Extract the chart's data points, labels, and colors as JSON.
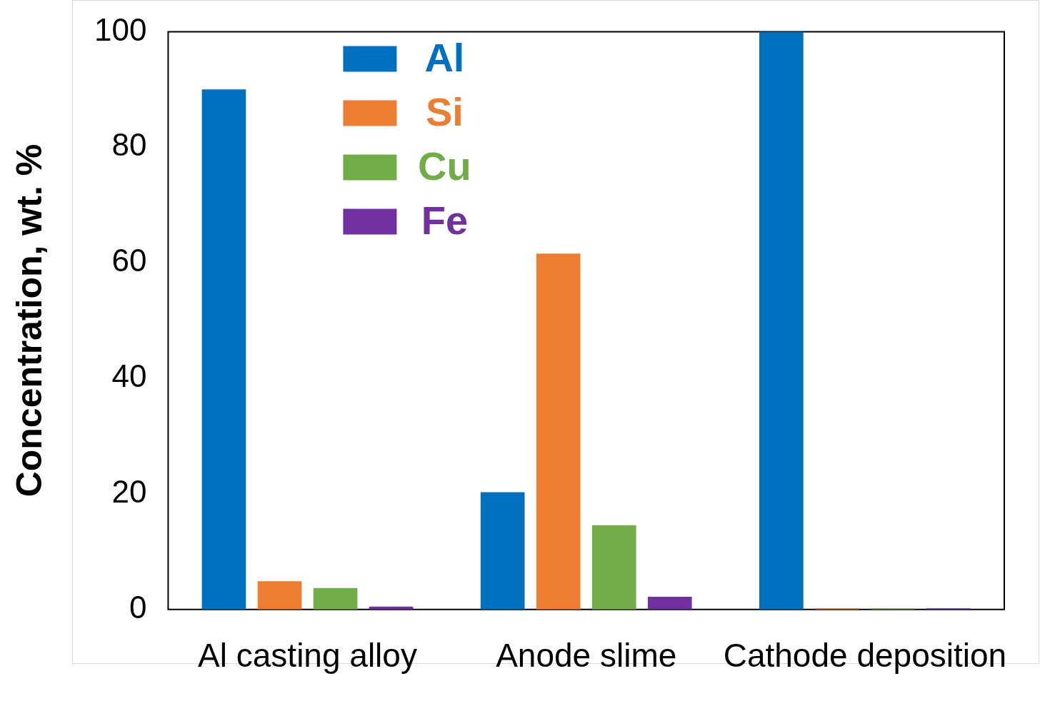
{
  "chart_data": {
    "type": "bar",
    "ylabel": "Concentration, wt. %",
    "categories": [
      "Al casting alloy",
      "Anode slime",
      "Cathode deposition"
    ],
    "series": [
      {
        "name": "Al",
        "color": "#0070c0",
        "values": [
          90,
          20.3,
          100
        ]
      },
      {
        "name": "Si",
        "color": "#ed7d31",
        "values": [
          4.9,
          61.6,
          0.2
        ]
      },
      {
        "name": "Cu",
        "color": "#70ad47",
        "values": [
          3.7,
          14.6,
          0.2
        ]
      },
      {
        "name": "Fe",
        "color": "#7030a0",
        "values": [
          0.5,
          2.2,
          0.2
        ]
      }
    ],
    "ylim": [
      0,
      100
    ],
    "yticks": [
      0,
      20,
      40,
      60,
      80,
      100
    ],
    "grid": false,
    "legend": "top left"
  }
}
